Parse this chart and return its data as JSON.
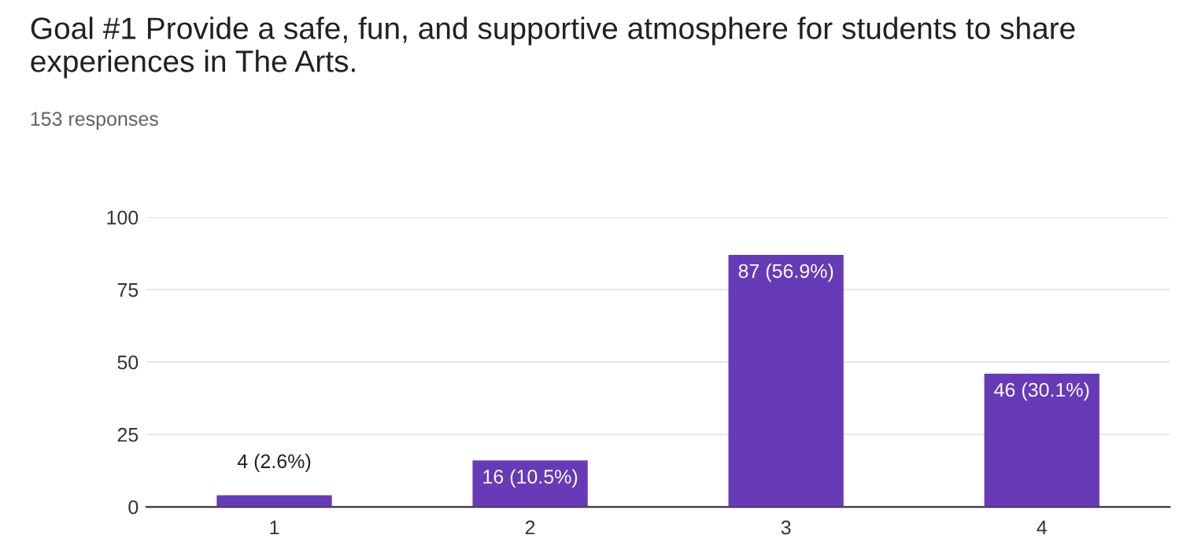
{
  "chart_data": {
    "type": "bar",
    "title": "Goal #1 Provide a safe, fun, and supportive atmosphere for students to share experiences in The Arts.",
    "subtitle": "153 responses",
    "categories": [
      "1",
      "2",
      "3",
      "4"
    ],
    "values": [
      4,
      16,
      87,
      46
    ],
    "color": "#673ab7",
    "value_labels": [
      "4 (2.6%)",
      "16 (10.5%)",
      "87 (56.9%)",
      "46 (30.1%)"
    ],
    "ylim": [
      0,
      100
    ],
    "yticks": [
      0,
      25,
      50,
      75,
      100
    ],
    "grid": "y"
  }
}
